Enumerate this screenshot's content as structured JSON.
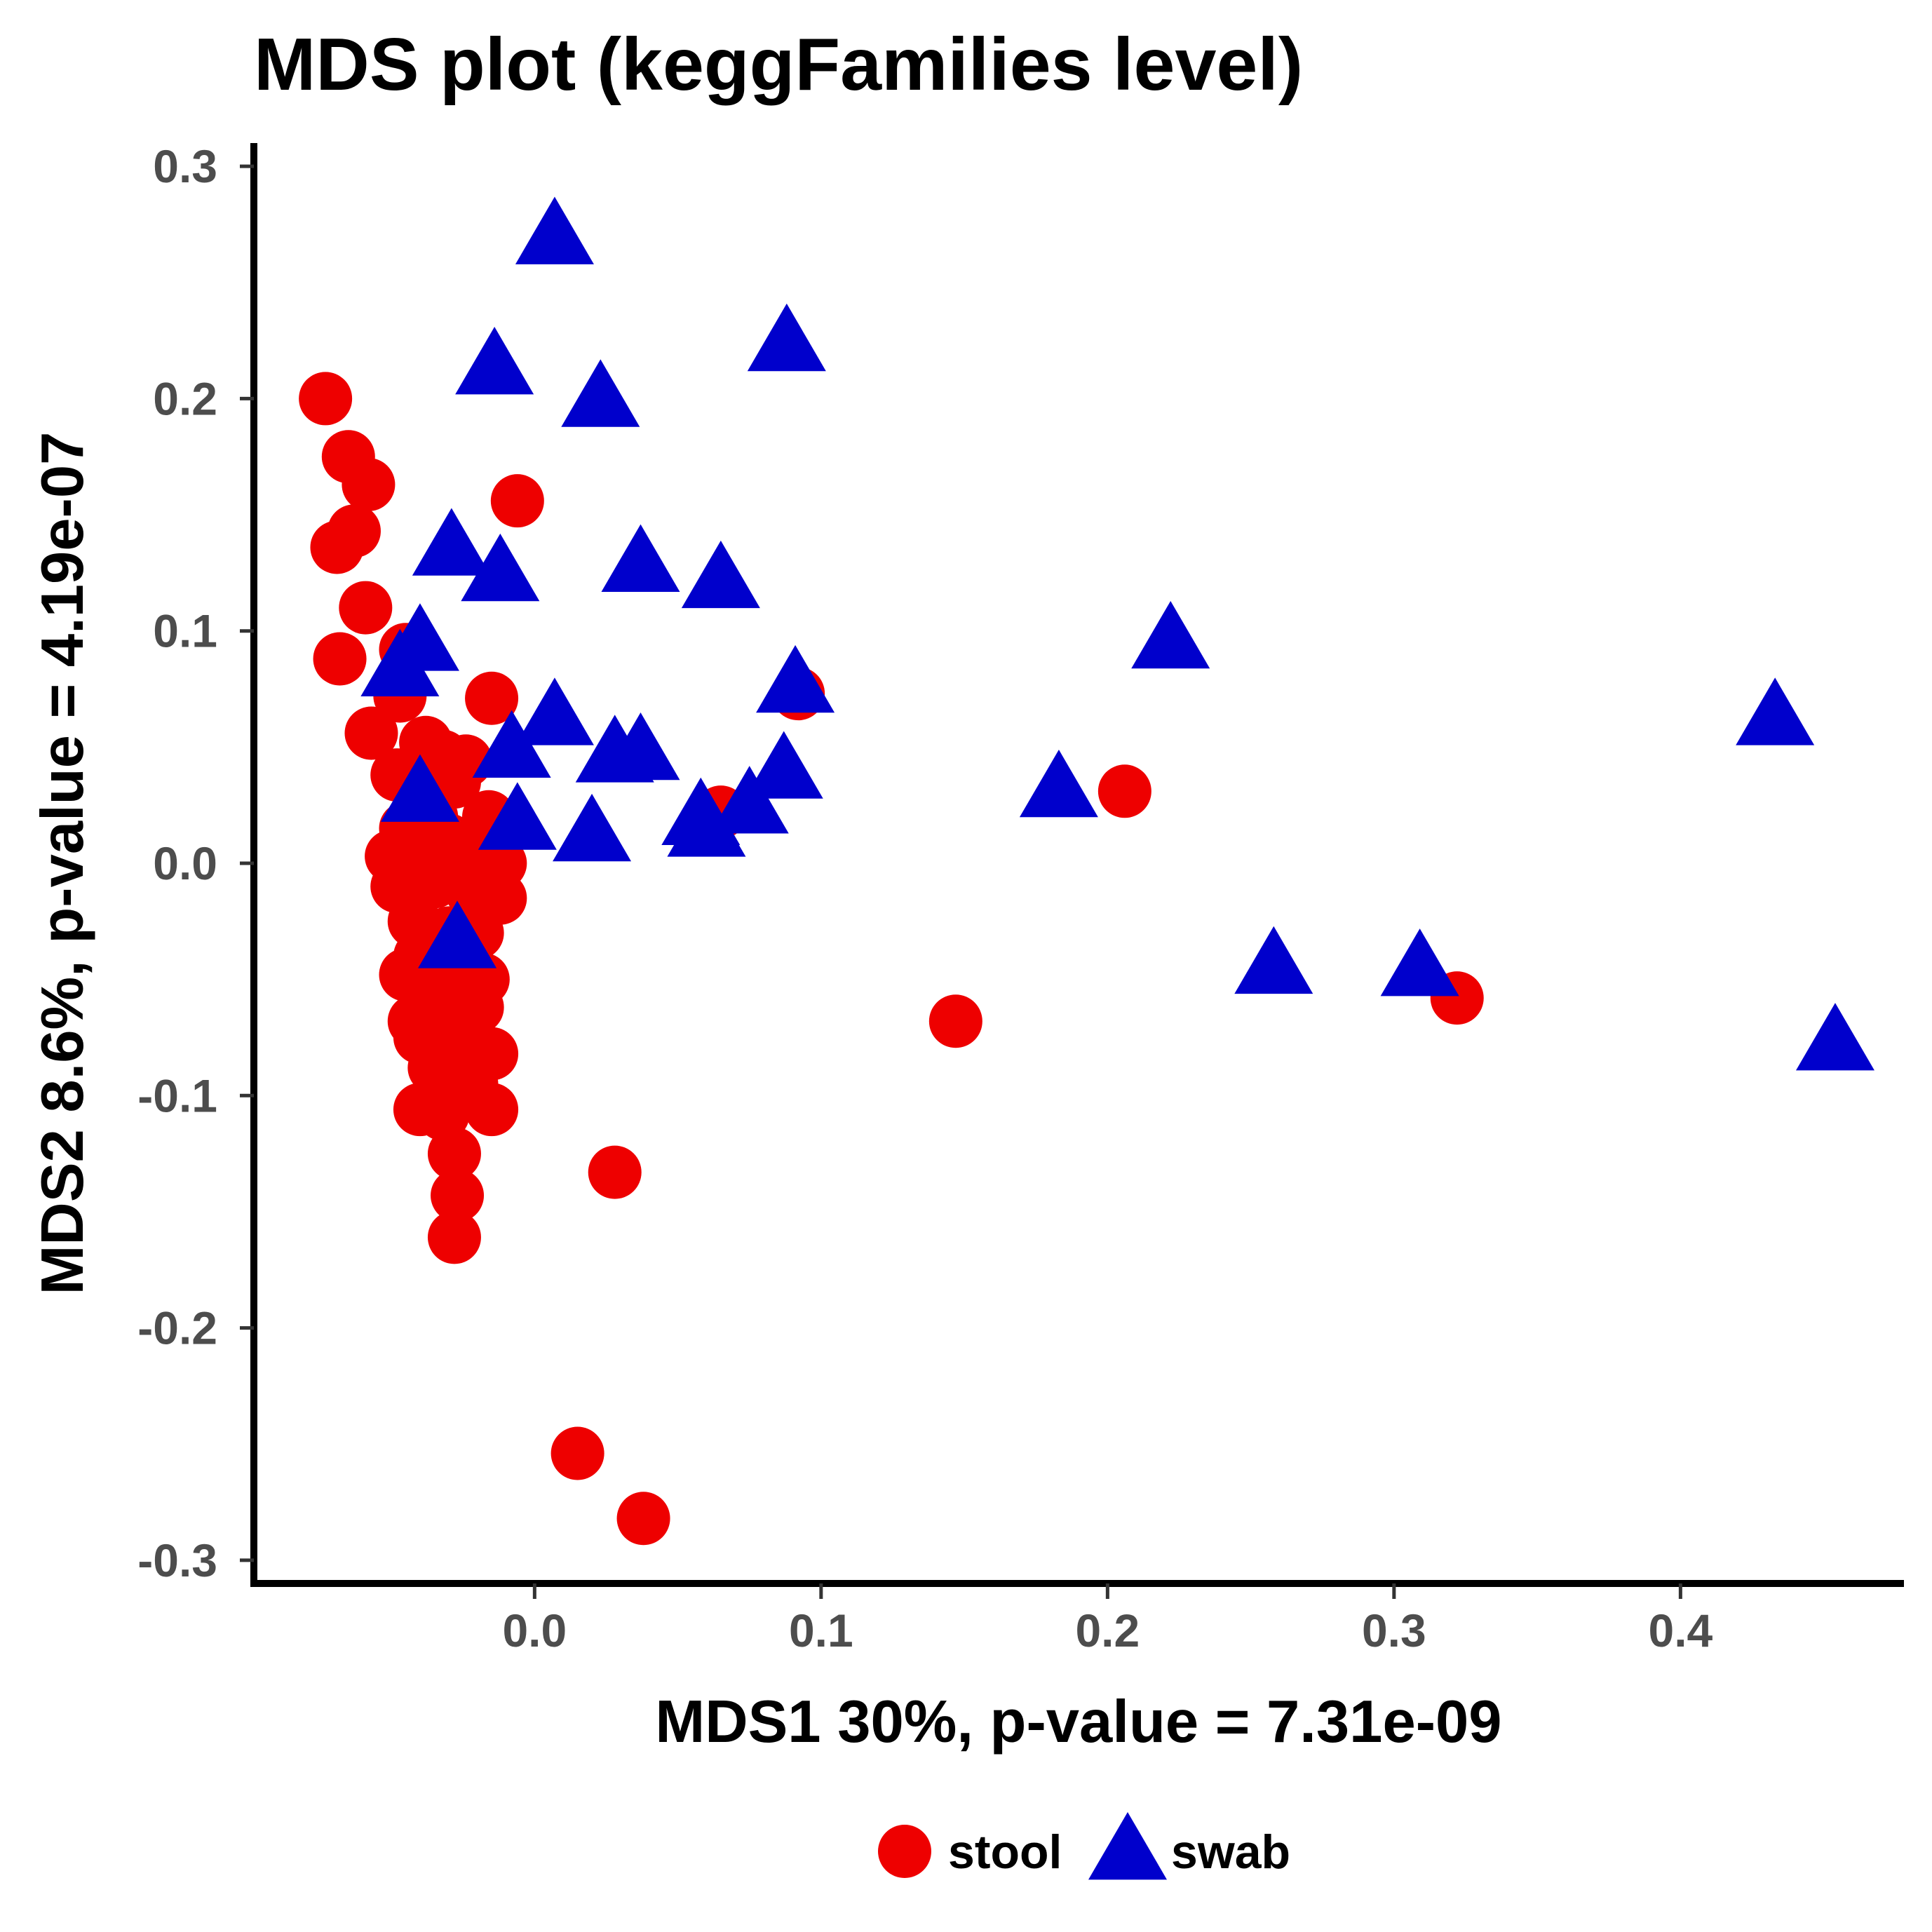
{
  "chart_data": {
    "type": "scatter",
    "title": "MDS plot (keggFamilies level)",
    "xlabel": "MDS1 30%, p-value = 7.31e-09",
    "ylabel": "MDS2 8.6%, p-value = 4.19e-07",
    "xlim": [
      -0.098,
      0.478
    ],
    "ylim": [
      -0.31,
      0.31
    ],
    "x_ticks": [
      {
        "value": 0.0,
        "label": "0.0"
      },
      {
        "value": 0.1,
        "label": "0.1"
      },
      {
        "value": 0.2,
        "label": "0.2"
      },
      {
        "value": 0.3,
        "label": "0.3"
      },
      {
        "value": 0.4,
        "label": "0.4"
      }
    ],
    "y_ticks": [
      {
        "value": 0.3,
        "label": "0.3"
      },
      {
        "value": 0.2,
        "label": "0.2"
      },
      {
        "value": 0.1,
        "label": "0.1"
      },
      {
        "value": 0.0,
        "label": "0.0"
      },
      {
        "value": -0.1,
        "label": "-0.1"
      },
      {
        "value": -0.2,
        "label": "-0.2"
      },
      {
        "value": -0.3,
        "label": "-0.3"
      }
    ],
    "grid": false,
    "legend_position": "bottom",
    "series": [
      {
        "name": "stool",
        "color": "#ee0000",
        "marker": "circle",
        "points": [
          [
            -0.073,
            0.2
          ],
          [
            -0.065,
            0.175
          ],
          [
            -0.058,
            0.163
          ],
          [
            -0.063,
            0.143
          ],
          [
            -0.069,
            0.136
          ],
          [
            -0.059,
            0.11
          ],
          [
            -0.068,
            0.088
          ],
          [
            -0.045,
            0.092
          ],
          [
            -0.006,
            0.156
          ],
          [
            -0.015,
            0.071
          ],
          [
            -0.047,
            0.072
          ],
          [
            -0.057,
            0.056
          ],
          [
            -0.038,
            0.052
          ],
          [
            -0.024,
            0.044
          ],
          [
            -0.032,
            0.046
          ],
          [
            -0.048,
            0.038
          ],
          [
            -0.028,
            0.035
          ],
          [
            -0.016,
            0.02
          ],
          [
            -0.012,
            0.012
          ],
          [
            -0.036,
            0.02
          ],
          [
            -0.045,
            0.015
          ],
          [
            -0.03,
            0.01
          ],
          [
            -0.05,
            0.003
          ],
          [
            -0.04,
            0.002
          ],
          [
            -0.025,
            0.003
          ],
          [
            -0.012,
            0.0
          ],
          [
            -0.048,
            -0.01
          ],
          [
            -0.035,
            -0.008
          ],
          [
            -0.022,
            -0.012
          ],
          [
            -0.012,
            -0.015
          ],
          [
            -0.042,
            -0.025
          ],
          [
            -0.03,
            -0.03
          ],
          [
            -0.02,
            -0.03
          ],
          [
            -0.04,
            -0.04
          ],
          [
            -0.025,
            -0.042
          ],
          [
            -0.045,
            -0.048
          ],
          [
            -0.035,
            -0.05
          ],
          [
            -0.018,
            -0.05
          ],
          [
            -0.02,
            -0.062
          ],
          [
            -0.032,
            -0.065
          ],
          [
            -0.042,
            -0.068
          ],
          [
            -0.04,
            -0.075
          ],
          [
            -0.025,
            -0.078
          ],
          [
            -0.015,
            -0.082
          ],
          [
            -0.035,
            -0.088
          ],
          [
            -0.022,
            -0.095
          ],
          [
            -0.04,
            -0.106
          ],
          [
            -0.015,
            -0.106
          ],
          [
            -0.032,
            -0.108
          ],
          [
            -0.028,
            -0.125
          ],
          [
            -0.027,
            -0.143
          ],
          [
            -0.028,
            -0.161
          ],
          [
            0.028,
            -0.133
          ],
          [
            0.015,
            -0.254
          ],
          [
            0.038,
            -0.282
          ],
          [
            0.147,
            -0.068
          ],
          [
            0.206,
            0.031
          ],
          [
            0.322,
            -0.058
          ],
          [
            0.092,
            0.073
          ],
          [
            0.065,
            0.022
          ]
        ]
      },
      {
        "name": "swab",
        "color": "#0000cc",
        "marker": "triangle",
        "points": [
          [
            0.007,
            0.27
          ],
          [
            0.088,
            0.224
          ],
          [
            -0.014,
            0.214
          ],
          [
            0.023,
            0.2
          ],
          [
            -0.029,
            0.136
          ],
          [
            -0.012,
            0.125
          ],
          [
            0.037,
            0.129
          ],
          [
            0.065,
            0.122
          ],
          [
            0.222,
            0.096
          ],
          [
            0.091,
            0.077
          ],
          [
            -0.04,
            0.095
          ],
          [
            -0.047,
            0.084
          ],
          [
            0.007,
            0.063
          ],
          [
            0.433,
            0.063
          ],
          [
            0.037,
            0.048
          ],
          [
            0.028,
            0.047
          ],
          [
            0.087,
            0.04
          ],
          [
            -0.008,
            0.049
          ],
          [
            -0.04,
            0.03
          ],
          [
            0.183,
            0.032
          ],
          [
            -0.006,
            0.018
          ],
          [
            0.02,
            0.013
          ],
          [
            0.06,
            0.015
          ],
          [
            0.075,
            0.025
          ],
          [
            0.058,
            0.02
          ],
          [
            -0.027,
            -0.033
          ],
          [
            0.258,
            -0.044
          ],
          [
            0.309,
            -0.045
          ],
          [
            0.454,
            -0.077
          ]
        ]
      }
    ]
  }
}
